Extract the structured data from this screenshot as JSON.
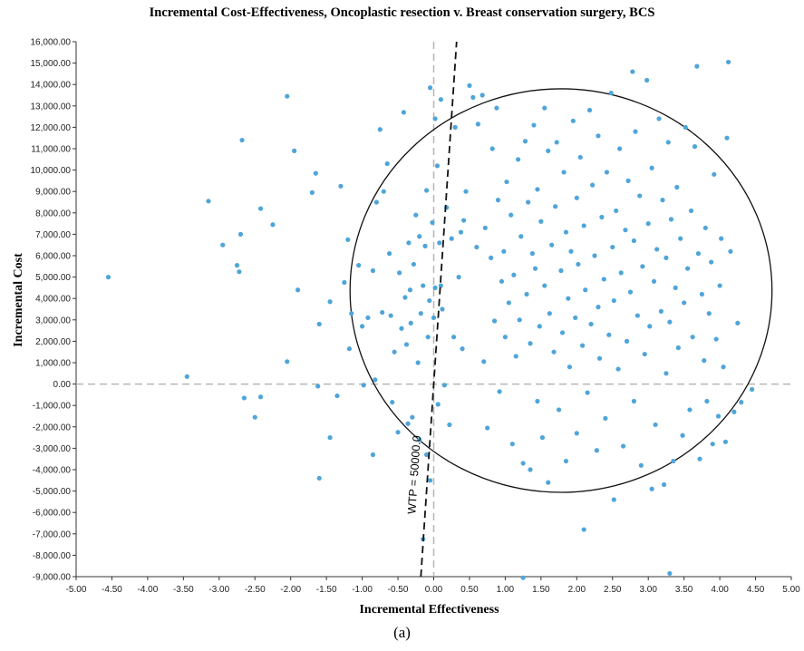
{
  "caption": "(a)",
  "chart_data": {
    "type": "scatter",
    "title": "Incremental Cost-Effectiveness, Oncoplastic resection v. Breast conservation surgery, BCS",
    "xlabel": "Incremental Effectiveness",
    "ylabel": "Incremental Cost",
    "xlim": [
      -5,
      5
    ],
    "ylim": [
      -9000,
      16000
    ],
    "x_ticks": [
      "-5.00",
      "-4.50",
      "-4.00",
      "-3.50",
      "-3.00",
      "-2.50",
      "-2.00",
      "-1.50",
      "-1.00",
      "-0.50",
      "0.00",
      "0.50",
      "1.00",
      "1.50",
      "2.00",
      "2.50",
      "3.00",
      "3.50",
      "4.00",
      "4.50",
      "5.00"
    ],
    "y_ticks": [
      "16,000.00",
      "15,000.00",
      "14,000.00",
      "13,000.00",
      "12,000.00",
      "11,000.00",
      "10,000.00",
      "9,000.00",
      "8,000.00",
      "7,000.00",
      "6,000.00",
      "5,000.00",
      "4,000.00",
      "3,000.00",
      "2,000.00",
      "1,000.00",
      "0.00",
      "-1,000.00",
      "-2,000.00",
      "-3,000.00",
      "-4,000.00",
      "-5,000.00",
      "-6,000.00",
      "-7,000.00",
      "-8,000.00",
      "-9,000.00"
    ],
    "point_color": "#4ea5d9",
    "grid": false,
    "wtp_line": {
      "label": "WTP = 50000.0",
      "slope": 50000
    },
    "confidence_ellipse": {
      "center": [
        1.78,
        4370
      ],
      "semi_axis_x": 2.95,
      "semi_axis_y": 9430
    },
    "points": [
      [
        -4.55,
        5000
      ],
      [
        -3.45,
        350
      ],
      [
        -3.15,
        8550
      ],
      [
        -2.95,
        6500
      ],
      [
        -2.7,
        7000
      ],
      [
        -2.68,
        11400
      ],
      [
        -2.75,
        5550
      ],
      [
        -2.72,
        5250
      ],
      [
        -2.65,
        -650
      ],
      [
        -2.5,
        -1550
      ],
      [
        -2.42,
        8200
      ],
      [
        -2.42,
        -600
      ],
      [
        -2.25,
        7450
      ],
      [
        -2.05,
        13450
      ],
      [
        -2.05,
        1050
      ],
      [
        -1.95,
        10900
      ],
      [
        -1.9,
        4400
      ],
      [
        -1.7,
        8950
      ],
      [
        -1.65,
        9850
      ],
      [
        -1.6,
        2800
      ],
      [
        -1.62,
        -100
      ],
      [
        -1.6,
        -4400
      ],
      [
        -1.45,
        3850
      ],
      [
        -1.45,
        -2500
      ],
      [
        -1.35,
        -550
      ],
      [
        -1.3,
        9250
      ],
      [
        -1.25,
        4750
      ],
      [
        -1.2,
        6750
      ],
      [
        -1.18,
        1650
      ],
      [
        -1.15,
        3300
      ],
      [
        -1.05,
        5550
      ],
      [
        -1.0,
        2700
      ],
      [
        -0.98,
        -50
      ],
      [
        -0.92,
        3100
      ],
      [
        -0.85,
        -3300
      ],
      [
        -0.85,
        5300
      ],
      [
        -0.82,
        200
      ],
      [
        -0.8,
        8500
      ],
      [
        -0.75,
        11900
      ],
      [
        -0.72,
        3350
      ],
      [
        -0.7,
        9000
      ],
      [
        -0.65,
        10300
      ],
      [
        -0.62,
        6100
      ],
      [
        -0.6,
        3200
      ],
      [
        -0.58,
        -850
      ],
      [
        -0.55,
        1500
      ],
      [
        -0.5,
        -2250
      ],
      [
        -0.48,
        5200
      ],
      [
        -0.45,
        2600
      ],
      [
        -0.42,
        12700
      ],
      [
        -0.4,
        4050
      ],
      [
        -0.38,
        1850
      ],
      [
        -0.36,
        -1850
      ],
      [
        -0.35,
        6600
      ],
      [
        -0.33,
        4400
      ],
      [
        -0.32,
        2850
      ],
      [
        -0.3,
        -1550
      ],
      [
        -0.28,
        5600
      ],
      [
        -0.25,
        7900
      ],
      [
        -0.22,
        1000
      ],
      [
        -0.2,
        6900
      ],
      [
        -0.2,
        -2600
      ],
      [
        -0.18,
        3300
      ],
      [
        -0.15,
        4600
      ],
      [
        -0.12,
        6450
      ],
      [
        -0.1,
        9050
      ],
      [
        -0.1,
        -3300
      ],
      [
        -0.08,
        2200
      ],
      [
        -0.06,
        3900
      ],
      [
        -0.05,
        -4500
      ],
      [
        -0.02,
        7550
      ],
      [
        0.0,
        3100
      ],
      [
        0.02,
        4500
      ],
      [
        -0.15,
        -7250
      ],
      [
        -0.05,
        13850
      ],
      [
        0.02,
        12400
      ],
      [
        0.05,
        10200
      ],
      [
        0.06,
        -950
      ],
      [
        0.08,
        6600
      ],
      [
        0.1,
        4600
      ],
      [
        0.1,
        13300
      ],
      [
        0.12,
        3500
      ],
      [
        0.15,
        -50
      ],
      [
        0.18,
        8250
      ],
      [
        0.22,
        -1900
      ],
      [
        0.25,
        6800
      ],
      [
        0.28,
        2200
      ],
      [
        0.3,
        12000
      ],
      [
        0.35,
        5000
      ],
      [
        0.38,
        7100
      ],
      [
        0.4,
        1650
      ],
      [
        0.42,
        7650
      ],
      [
        0.45,
        9000
      ],
      [
        0.5,
        13950
      ],
      [
        0.55,
        13400
      ],
      [
        0.6,
        6400
      ],
      [
        0.62,
        12150
      ],
      [
        0.68,
        13500
      ],
      [
        0.7,
        1050
      ],
      [
        0.72,
        7300
      ],
      [
        0.75,
        -2050
      ],
      [
        0.8,
        5900
      ],
      [
        0.82,
        11000
      ],
      [
        0.85,
        2950
      ],
      [
        0.88,
        12900
      ],
      [
        0.9,
        8600
      ],
      [
        0.92,
        -350
      ],
      [
        0.95,
        4800
      ],
      [
        0.98,
        6200
      ],
      [
        1.0,
        2200
      ],
      [
        1.02,
        9450
      ],
      [
        1.05,
        3800
      ],
      [
        1.08,
        7900
      ],
      [
        1.1,
        -2800
      ],
      [
        1.12,
        5100
      ],
      [
        1.15,
        1300
      ],
      [
        1.18,
        10500
      ],
      [
        1.2,
        3000
      ],
      [
        1.22,
        6900
      ],
      [
        1.25,
        -3700
      ],
      [
        1.25,
        -9050
      ],
      [
        1.28,
        11350
      ],
      [
        1.3,
        4200
      ],
      [
        1.32,
        8500
      ],
      [
        1.35,
        -4000
      ],
      [
        1.35,
        1900
      ],
      [
        1.38,
        6100
      ],
      [
        1.4,
        12100
      ],
      [
        1.42,
        5400
      ],
      [
        1.45,
        -800
      ],
      [
        1.45,
        9100
      ],
      [
        1.48,
        2700
      ],
      [
        1.5,
        7600
      ],
      [
        1.52,
        -2500
      ],
      [
        1.55,
        4600
      ],
      [
        1.55,
        12900
      ],
      [
        1.6,
        10900
      ],
      [
        1.6,
        -4600
      ],
      [
        1.62,
        3300
      ],
      [
        1.65,
        6500
      ],
      [
        1.68,
        1500
      ],
      [
        1.7,
        8300
      ],
      [
        1.72,
        11300
      ],
      [
        1.75,
        -1200
      ],
      [
        1.78,
        5300
      ],
      [
        1.8,
        2400
      ],
      [
        1.82,
        9900
      ],
      [
        1.85,
        7100
      ],
      [
        1.85,
        -3600
      ],
      [
        1.88,
        4000
      ],
      [
        1.9,
        800
      ],
      [
        1.92,
        6200
      ],
      [
        1.95,
        12300
      ],
      [
        1.98,
        3100
      ],
      [
        2.0,
        8700
      ],
      [
        2.0,
        -2300
      ],
      [
        2.02,
        5600
      ],
      [
        2.05,
        10600
      ],
      [
        2.08,
        1800
      ],
      [
        2.1,
        -6800
      ],
      [
        2.1,
        7400
      ],
      [
        2.12,
        4400
      ],
      [
        2.15,
        -400
      ],
      [
        2.18,
        12800
      ],
      [
        2.2,
        2800
      ],
      [
        2.22,
        9300
      ],
      [
        2.25,
        6000
      ],
      [
        2.28,
        -3100
      ],
      [
        2.3,
        3600
      ],
      [
        2.3,
        11600
      ],
      [
        2.32,
        1200
      ],
      [
        2.35,
        7800
      ],
      [
        2.38,
        4900
      ],
      [
        2.4,
        -1600
      ],
      [
        2.42,
        9900
      ],
      [
        2.45,
        2300
      ],
      [
        2.48,
        13600
      ],
      [
        2.5,
        6400
      ],
      [
        2.52,
        -5400
      ],
      [
        2.52,
        3900
      ],
      [
        2.55,
        8100
      ],
      [
        2.58,
        700
      ],
      [
        2.6,
        11000
      ],
      [
        2.62,
        5200
      ],
      [
        2.65,
        -2900
      ],
      [
        2.68,
        7200
      ],
      [
        2.7,
        2000
      ],
      [
        2.72,
        9500
      ],
      [
        2.75,
        4300
      ],
      [
        2.78,
        14600
      ],
      [
        2.8,
        -800
      ],
      [
        2.8,
        6700
      ],
      [
        2.82,
        11800
      ],
      [
        2.85,
        3200
      ],
      [
        2.88,
        8800
      ],
      [
        2.9,
        -3800
      ],
      [
        2.92,
        5500
      ],
      [
        2.95,
        1400
      ],
      [
        2.98,
        14200
      ],
      [
        3.0,
        7500
      ],
      [
        3.02,
        2700
      ],
      [
        3.05,
        10100
      ],
      [
        3.05,
        -4900
      ],
      [
        3.08,
        4800
      ],
      [
        3.1,
        -1900
      ],
      [
        3.12,
        6300
      ],
      [
        3.15,
        12400
      ],
      [
        3.18,
        3400
      ],
      [
        3.2,
        8600
      ],
      [
        3.22,
        -4700
      ],
      [
        3.25,
        500
      ],
      [
        3.25,
        5900
      ],
      [
        3.28,
        11300
      ],
      [
        3.3,
        -8850
      ],
      [
        3.3,
        2900
      ],
      [
        3.32,
        7700
      ],
      [
        3.35,
        -3600
      ],
      [
        3.38,
        4500
      ],
      [
        3.4,
        9200
      ],
      [
        3.42,
        1700
      ],
      [
        3.45,
        6800
      ],
      [
        3.48,
        -2400
      ],
      [
        3.5,
        3800
      ],
      [
        3.52,
        12000
      ],
      [
        3.55,
        5400
      ],
      [
        3.58,
        -1200
      ],
      [
        3.6,
        8100
      ],
      [
        3.62,
        2200
      ],
      [
        3.65,
        11100
      ],
      [
        3.68,
        14850
      ],
      [
        3.7,
        6100
      ],
      [
        3.72,
        -3500
      ],
      [
        3.75,
        4200
      ],
      [
        3.78,
        1100
      ],
      [
        3.8,
        7300
      ],
      [
        3.82,
        -800
      ],
      [
        3.85,
        3300
      ],
      [
        3.88,
        5700
      ],
      [
        3.9,
        -2800
      ],
      [
        3.92,
        9800
      ],
      [
        3.95,
        2100
      ],
      [
        3.98,
        -1500
      ],
      [
        4.0,
        4600
      ],
      [
        4.02,
        6800
      ],
      [
        4.05,
        800
      ],
      [
        4.08,
        -2700
      ],
      [
        4.1,
        11500
      ],
      [
        4.12,
        15050
      ],
      [
        4.15,
        6200
      ],
      [
        4.2,
        -1300
      ],
      [
        4.25,
        2850
      ],
      [
        4.3,
        -850
      ],
      [
        4.45,
        -250
      ]
    ]
  }
}
